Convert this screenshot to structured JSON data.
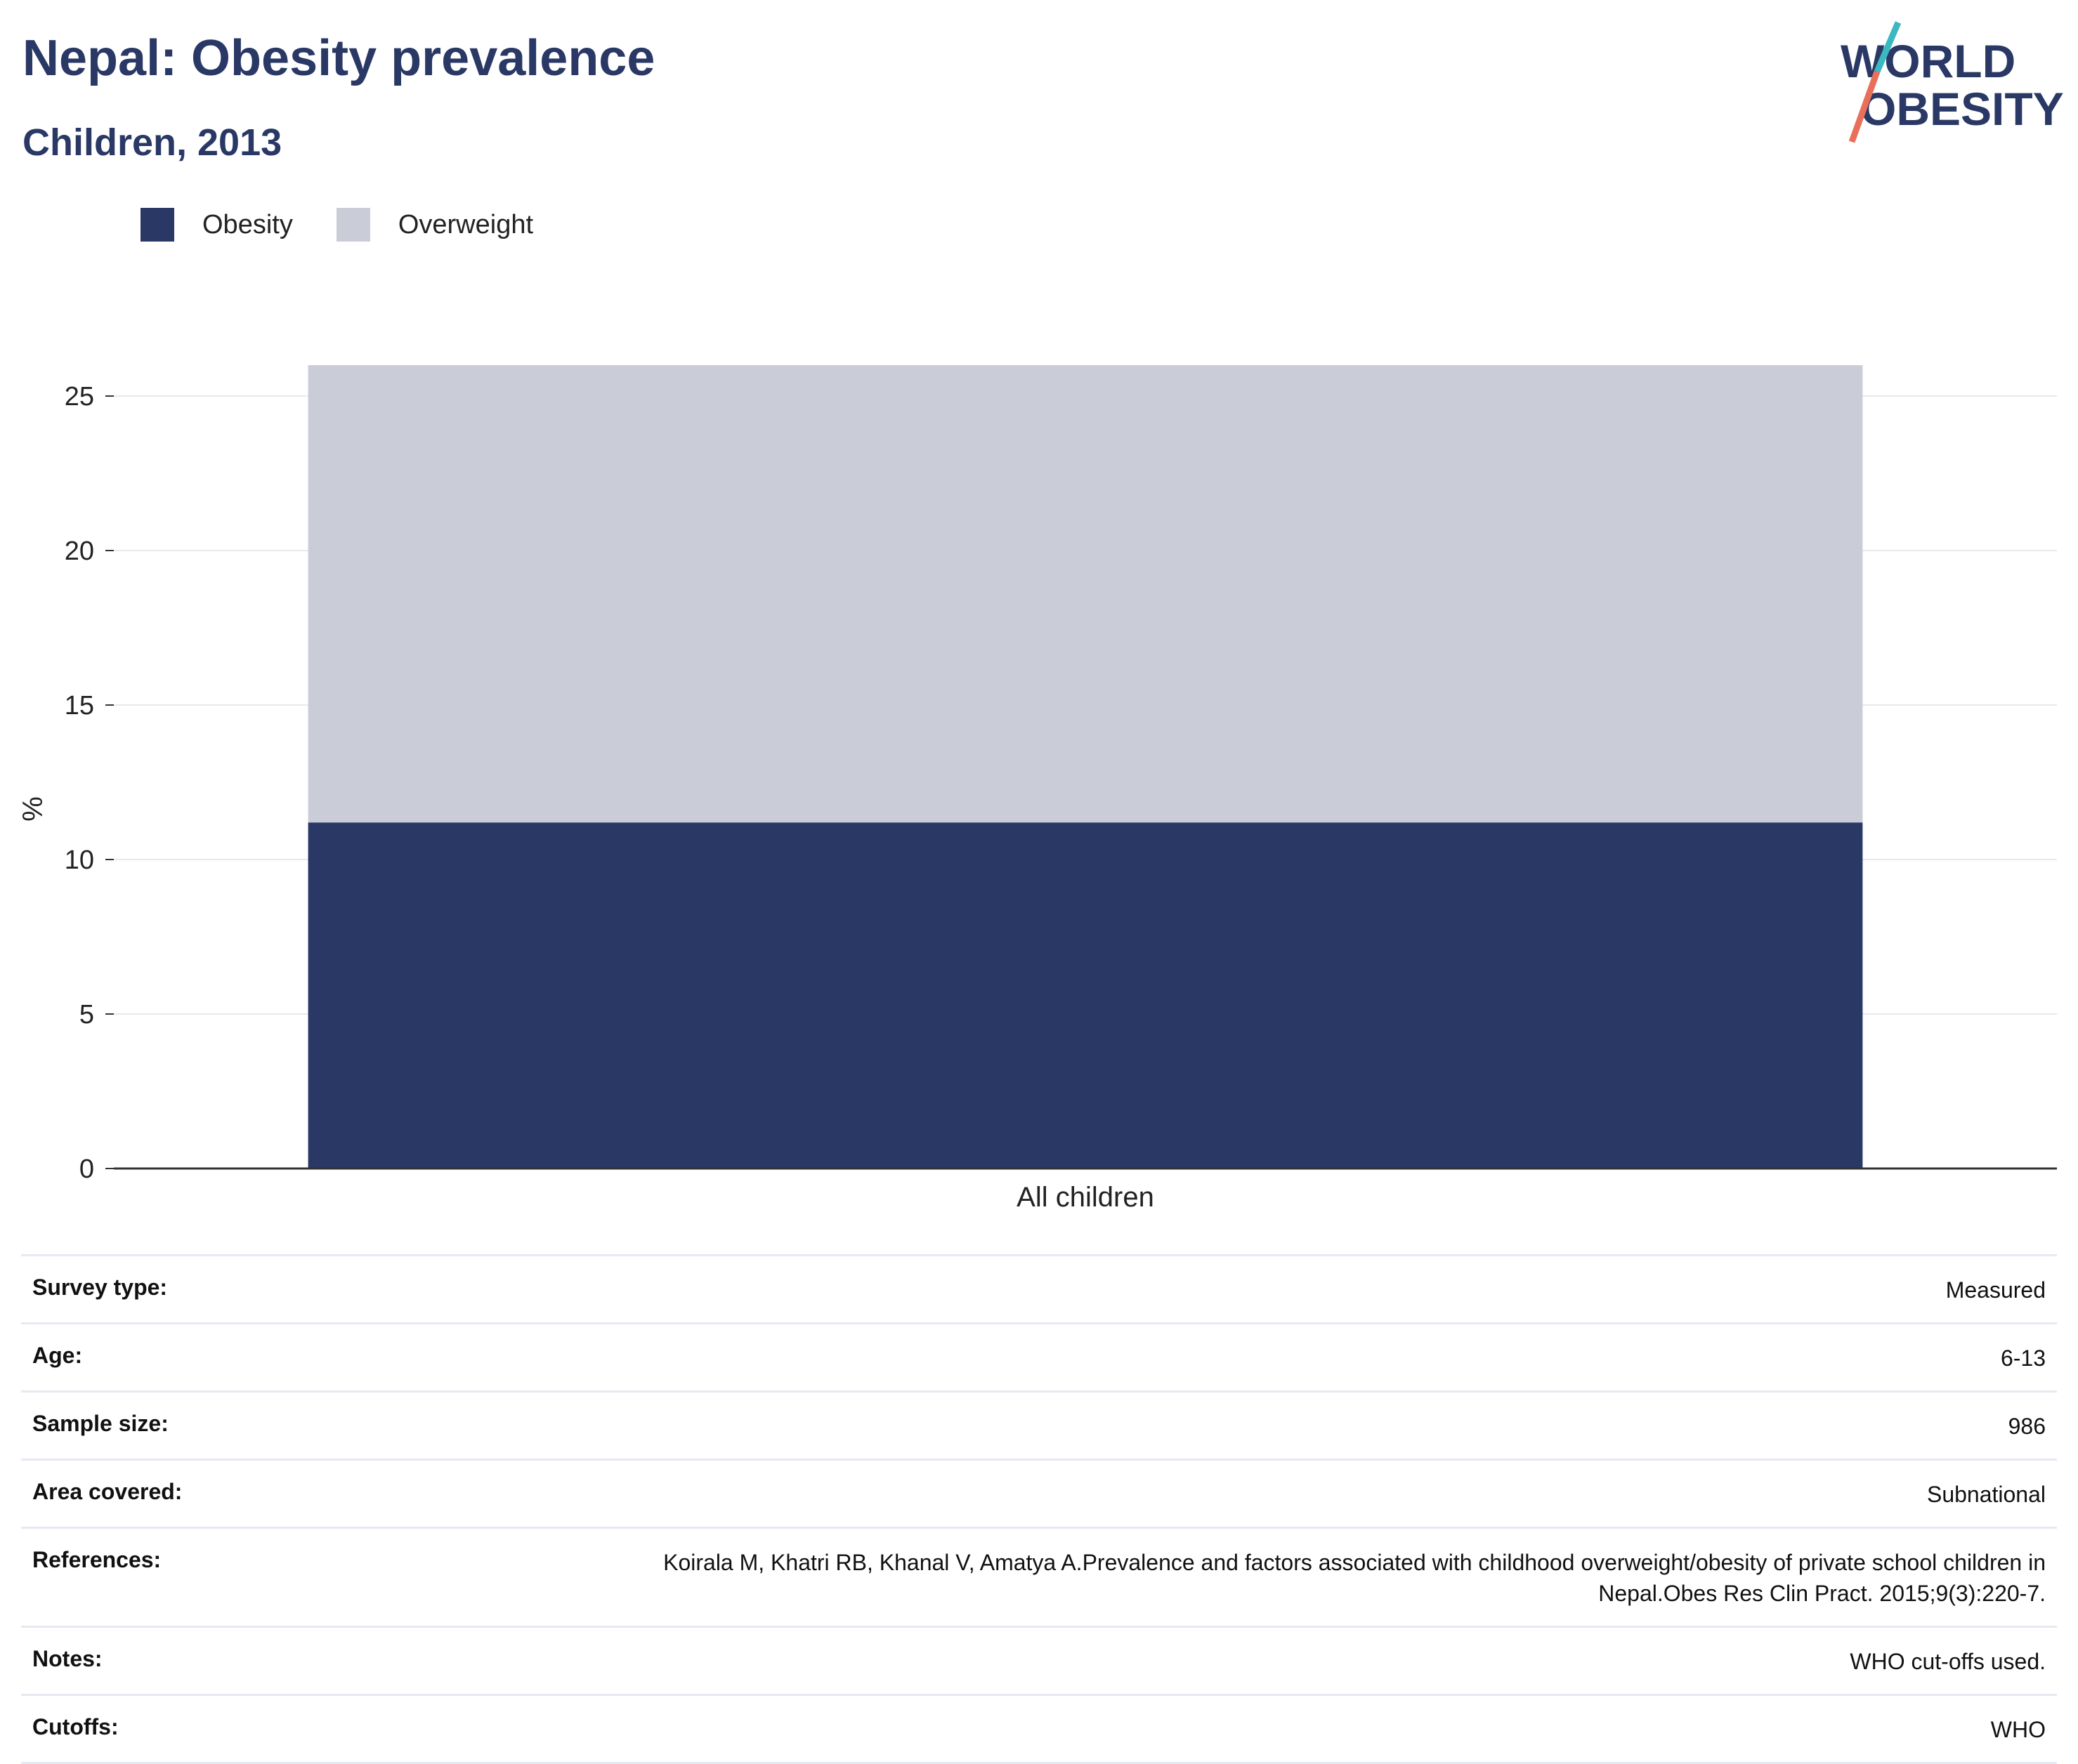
{
  "header": {
    "title": "Nepal: Obesity prevalence",
    "subtitle": "Children, 2013"
  },
  "logo": {
    "line1": "WORLD",
    "line2": "OBESITY",
    "colors": {
      "text": "#2a3865",
      "slash_top": "#3bb8c0",
      "slash_bottom": "#e8705a"
    }
  },
  "legend": [
    {
      "label": "Obesity",
      "color": "#2a3865"
    },
    {
      "label": "Overweight",
      "color": "#cacdd8"
    }
  ],
  "chart_data": {
    "type": "bar",
    "stacked": true,
    "categories": [
      "All children"
    ],
    "series": [
      {
        "name": "Obesity",
        "values": [
          11.2
        ],
        "color": "#2a3865"
      },
      {
        "name": "Overweight",
        "values": [
          14.8
        ],
        "color": "#cacdd8"
      }
    ],
    "title": "Nepal: Obesity prevalence",
    "subtitle": "Children, 2013",
    "xlabel": "",
    "ylabel": "%",
    "ylim": [
      0,
      26
    ],
    "yticks": [
      0,
      5,
      10,
      15,
      20,
      25
    ],
    "grid": true,
    "legend_position": "top-left"
  },
  "info": [
    {
      "key": "Survey type:",
      "value": "Measured"
    },
    {
      "key": "Age:",
      "value": "6-13"
    },
    {
      "key": "Sample size:",
      "value": "986"
    },
    {
      "key": "Area covered:",
      "value": "Subnational"
    },
    {
      "key": "References:",
      "value": "Koirala M, Khatri RB, Khanal V, Amatya A.Prevalence and factors associated with childhood overweight/obesity of private school children in Nepal.Obes Res Clin Pract. 2015;9(3):220-7."
    },
    {
      "key": "Notes:",
      "value": "WHO cut-offs used."
    },
    {
      "key": "Cutoffs:",
      "value": "WHO"
    }
  ]
}
